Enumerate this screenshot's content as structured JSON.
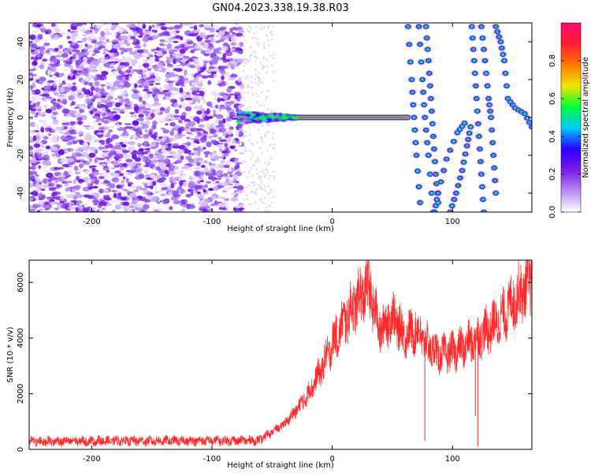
{
  "figure": {
    "title": "GN04.2023.338.19.38.R03"
  },
  "chart_data": [
    {
      "type": "heatmap",
      "name": "spectrogram",
      "xlabel": "Height of straight line (km)",
      "ylabel": "Frequency (Hz)",
      "xlim": [
        -252,
        166
      ],
      "ylim": [
        -50,
        50
      ],
      "xticks": [
        -200,
        -100,
        0,
        100
      ],
      "yticks": [
        -40,
        -20,
        0,
        20,
        40
      ],
      "colorbar": {
        "label": "Normalized spectral amplitude",
        "range": [
          0,
          1
        ],
        "ticks": [
          0.0,
          0.2,
          0.4,
          0.6,
          0.8
        ],
        "colors": [
          "#ffffff",
          "#b68cf0",
          "#7c1ae6",
          "#2a00ff",
          "#00c8ff",
          "#00ff3a",
          "#f0e600",
          "#ff7800",
          "#ff1e32",
          "#ff0a6e"
        ]
      },
      "features": {
        "noise_region_x": [
          -252,
          -75
        ],
        "transition_x": [
          -78,
          -30
        ],
        "carrier_line": {
          "x": [
            -32,
            63
          ],
          "freq": 0
        },
        "fringe_curves": [
          {
            "branch": "right",
            "points": [
              [
                63,
                48
              ],
              [
                66,
                20
              ],
              [
                68,
                0
              ],
              [
                70,
                -20
              ],
              [
                73,
                -45
              ]
            ]
          },
          {
            "branch": "right",
            "points": [
              [
                72,
                48
              ],
              [
                75,
                20
              ],
              [
                77,
                0
              ],
              [
                80,
                -20
              ],
              [
                84,
                -50
              ]
            ]
          },
          {
            "branch": "left",
            "points": [
              [
                78,
                48
              ],
              [
                80,
                30
              ],
              [
                82,
                10
              ],
              [
                84,
                -10
              ],
              [
                86,
                -30
              ],
              [
                88,
                -45
              ]
            ]
          },
          {
            "branch": "left",
            "points": [
              [
                85,
                -50
              ],
              [
                88,
                -40
              ],
              [
                95,
                -22
              ],
              [
                104,
                -8
              ],
              [
                110,
                -3
              ]
            ]
          },
          {
            "branch": "left",
            "points": [
              [
                98,
                -50
              ],
              [
                103,
                -40
              ],
              [
                108,
                -28
              ],
              [
                112,
                -15
              ],
              [
                115,
                -5
              ]
            ]
          },
          {
            "branch": "right",
            "points": [
              [
                116,
                48
              ],
              [
                118,
                30
              ],
              [
                120,
                10
              ],
              [
                122,
                -10
              ],
              [
                124,
                -30
              ],
              [
                126,
                -50
              ]
            ]
          },
          {
            "branch": "right",
            "points": [
              [
                124,
                48
              ],
              [
                127,
                30
              ],
              [
                130,
                10
              ],
              [
                132,
                0
              ],
              [
                134,
                -20
              ],
              [
                136,
                -40
              ]
            ]
          },
          {
            "branch": "right",
            "points": [
              [
                136,
                48
              ],
              [
                140,
                40
              ],
              [
                143,
                30
              ],
              [
                146,
                10
              ],
              [
                152,
                5
              ],
              [
                160,
                2
              ],
              [
                166,
                -5
              ]
            ]
          }
        ]
      }
    },
    {
      "type": "line",
      "name": "snr",
      "xlabel": "Height of straight line (km)",
      "ylabel": "SNR (10 * v/v)",
      "xlim": [
        -252,
        166
      ],
      "ylim": [
        0,
        6800
      ],
      "xticks": [
        -200,
        -100,
        0,
        100
      ],
      "yticks": [
        0,
        2000,
        4000,
        6000
      ],
      "color": "#ff2a2a",
      "envelope": {
        "x": [
          -252,
          -200,
          -150,
          -100,
          -60,
          -55,
          -40,
          -30,
          -20,
          -10,
          0,
          10,
          20,
          30,
          35,
          40,
          50,
          60,
          70,
          80,
          90,
          100,
          110,
          120,
          130,
          140,
          150,
          160,
          166
        ],
        "y": [
          280,
          300,
          300,
          310,
          320,
          500,
          900,
          1400,
          2000,
          2800,
          3800,
          4600,
          5300,
          5900,
          5000,
          4300,
          4800,
          4100,
          4300,
          3700,
          3400,
          3500,
          3700,
          4000,
          4300,
          4700,
          5300,
          5800,
          6100
        ]
      },
      "spikes": [
        {
          "x": 77,
          "y": 300
        },
        {
          "x": 119,
          "y": 1200
        },
        {
          "x": 121,
          "y": 100
        }
      ]
    }
  ]
}
